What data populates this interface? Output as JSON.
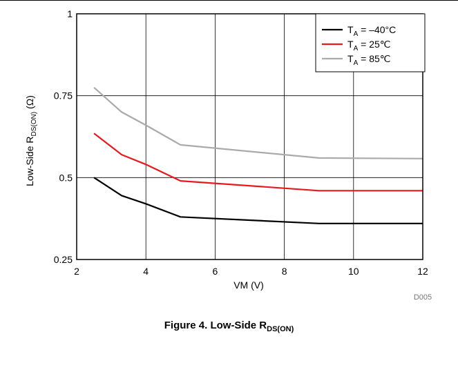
{
  "chart_data": {
    "type": "line",
    "xlabel": "VM (V)",
    "ylabel_main": "Low-Side R",
    "ylabel_sub": "DS(ON)",
    "ylabel_unit": "(Ω)",
    "xlim": [
      2,
      12
    ],
    "ylim": [
      0.25,
      1
    ],
    "xticks": [
      "2",
      "4",
      "6",
      "8",
      "10",
      "12"
    ],
    "yticks": [
      "0.25",
      "0.5",
      "0.75",
      "1"
    ],
    "grid": true,
    "legend_position": "top-right",
    "series": [
      {
        "name_main": "T",
        "name_sub": "A",
        "name_rest": " = –40°C",
        "color": "#000000",
        "x": [
          2.5,
          3.3,
          4,
          5,
          9,
          12
        ],
        "y": [
          0.5,
          0.445,
          0.42,
          0.38,
          0.36,
          0.36
        ]
      },
      {
        "name_main": "T",
        "name_sub": "A",
        "name_rest": " = 25℃",
        "color": "#e8191c",
        "x": [
          2.5,
          3.3,
          4,
          5,
          9,
          12
        ],
        "y": [
          0.635,
          0.57,
          0.54,
          0.49,
          0.46,
          0.46
        ]
      },
      {
        "name_main": "T",
        "name_sub": "A",
        "name_rest": " = 85℃",
        "color": "#aaaaaa",
        "x": [
          2.5,
          3.3,
          4,
          5,
          9,
          12
        ],
        "y": [
          0.775,
          0.7,
          0.66,
          0.6,
          0.56,
          0.558
        ]
      }
    ],
    "figure_code": "D005"
  },
  "caption": {
    "main": "Figure 4. Low-Side R",
    "sub": "DS(ON)"
  }
}
